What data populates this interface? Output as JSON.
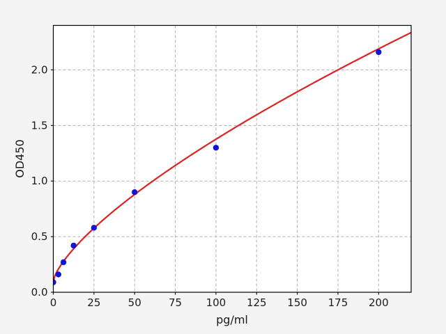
{
  "chart_data": {
    "type": "scatter",
    "title": "",
    "xlabel": "pg/ml",
    "ylabel": "OD450",
    "xlim": [
      0,
      220
    ],
    "ylim": [
      0,
      2.4
    ],
    "x_ticks": [
      0,
      25,
      50,
      75,
      100,
      125,
      150,
      175,
      200
    ],
    "y_ticks": [
      0.0,
      0.5,
      1.0,
      1.5,
      2.0
    ],
    "y_tick_labels": [
      "0.0",
      "0.5",
      "1.0",
      "1.5",
      "2.0"
    ],
    "grid": true,
    "legend": "none",
    "series": [
      {
        "name": "standard-points",
        "type": "scatter",
        "marker": "circle",
        "color": "#1414d8",
        "x": [
          0,
          3.125,
          6.25,
          12.5,
          25,
          50,
          100,
          200
        ],
        "y": [
          0.09,
          0.16,
          0.27,
          0.42,
          0.58,
          0.9,
          1.3,
          2.16
        ]
      },
      {
        "name": "fit-curve",
        "type": "line",
        "color": "#dd2222",
        "fit": {
          "form": "power_offset",
          "formula": "od = a + b * x^c",
          "a": 0.1,
          "b": 0.0483,
          "c": 0.711
        },
        "x_range": [
          0,
          220
        ]
      }
    ],
    "colors": {
      "figure_background": "#f4f4f4",
      "plot_background": "#ffffff",
      "grid": "#b0b0b0",
      "spine": "#000000",
      "curve": "#dd2222",
      "marker": "#1414d8",
      "tick_text": "#1a1a1a"
    }
  }
}
